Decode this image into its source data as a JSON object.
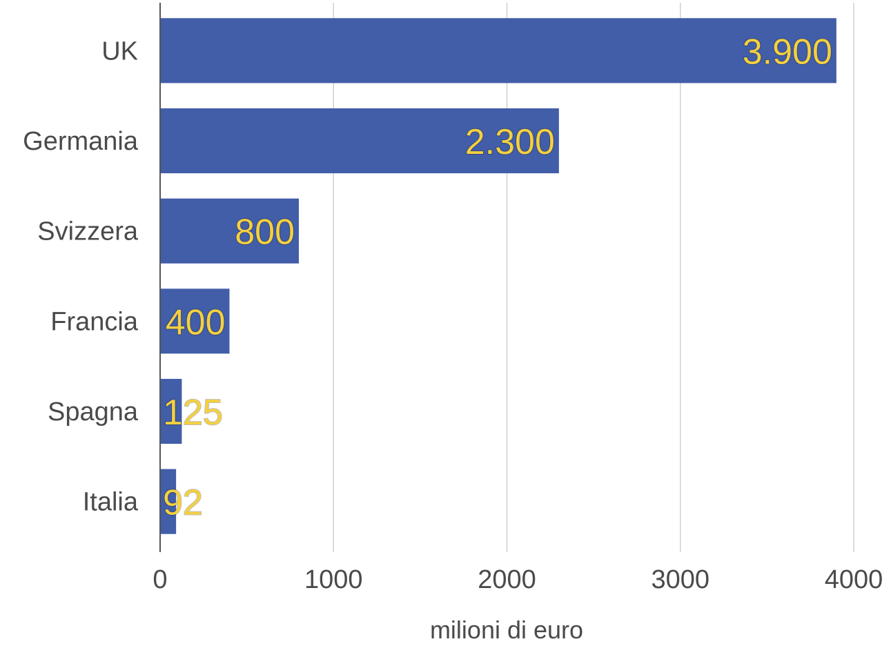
{
  "chart_data": {
    "type": "bar",
    "orientation": "horizontal",
    "categories": [
      "UK",
      "Germania",
      "Svizzera",
      "Francia",
      "Spagna",
      "Italia"
    ],
    "values": [
      3900,
      2300,
      800,
      400,
      125,
      92
    ],
    "data_labels": [
      "3.900",
      "2.300",
      "800",
      "400",
      "125",
      "92"
    ],
    "xlabel": "milioni di euro",
    "ylabel": "",
    "title": "",
    "xlim": [
      0,
      4000
    ],
    "xticks": [
      0,
      1000,
      2000,
      3000,
      4000
    ],
    "xtick_labels": [
      "0",
      "1000",
      "2000",
      "3000",
      "4000"
    ],
    "grid": "vertical",
    "legend": "none",
    "colors": {
      "bar": "#425ea8",
      "label": "#f4d03f",
      "text": "#4a4a4a",
      "grid": "#cfcfcf"
    }
  }
}
